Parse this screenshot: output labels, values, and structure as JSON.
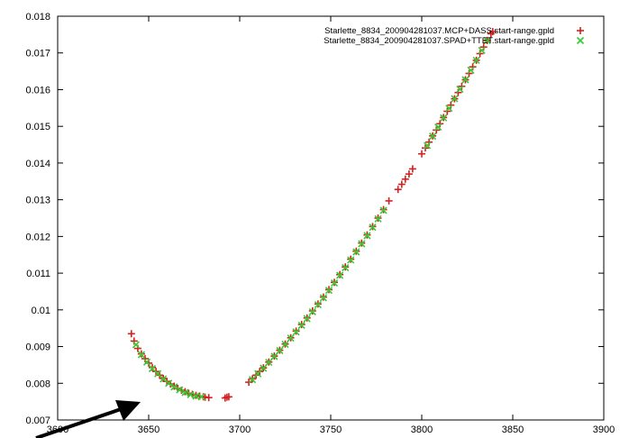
{
  "chart_data": {
    "type": "scatter",
    "title": "",
    "xlabel": "",
    "ylabel": "",
    "xlim": [
      3600,
      3900
    ],
    "ylim": [
      0.007,
      0.018
    ],
    "x_ticks": [
      3600,
      3650,
      3700,
      3750,
      3800,
      3850,
      3900
    ],
    "x_tick_labels": [
      "3600",
      "3650",
      "3700",
      "3750",
      "3800",
      "3850",
      "3900"
    ],
    "y_ticks": [
      0.007,
      0.008,
      0.009,
      0.01,
      0.011,
      0.012,
      0.013,
      0.014,
      0.015,
      0.016,
      0.017,
      0.018
    ],
    "y_tick_labels": [
      "0.007",
      "0.008",
      "0.009",
      "0.01",
      "0.011",
      "0.012",
      "0.013",
      "0.014",
      "0.015",
      "0.016",
      "0.017",
      "0.018"
    ],
    "grid": false,
    "legend_position": "top-right",
    "series": [
      {
        "name": "Starlette_8834_200904281037.MCP+DASS.start-range.gpld",
        "marker": "plus",
        "color": "#d62020",
        "points": [
          [
            3640.5,
            0.00935
          ],
          [
            3642,
            0.00915
          ],
          [
            3644,
            0.00895
          ],
          [
            3646,
            0.0088
          ],
          [
            3648,
            0.00867
          ],
          [
            3650,
            0.00855
          ],
          [
            3652,
            0.00843
          ],
          [
            3654,
            0.00832
          ],
          [
            3656,
            0.00822
          ],
          [
            3658,
            0.00813
          ],
          [
            3660,
            0.00805
          ],
          [
            3662,
            0.00798
          ],
          [
            3664,
            0.00792
          ],
          [
            3666,
            0.00786
          ],
          [
            3668,
            0.00781
          ],
          [
            3670,
            0.00777
          ],
          [
            3672,
            0.00773
          ],
          [
            3674,
            0.0077
          ],
          [
            3676,
            0.00767
          ],
          [
            3678,
            0.00765
          ],
          [
            3680,
            0.00763
          ],
          [
            3681,
            0.00762
          ],
          [
            3683,
            0.00761
          ],
          [
            3692,
            0.0076
          ],
          [
            3693,
            0.00762
          ],
          [
            3694,
            0.00763
          ],
          [
            3705,
            0.00803
          ],
          [
            3707,
            0.00812
          ],
          [
            3709,
            0.00822
          ],
          [
            3711,
            0.00832
          ],
          [
            3713,
            0.00842
          ],
          [
            3716,
            0.00858
          ],
          [
            3719,
            0.00874
          ],
          [
            3722,
            0.0089
          ],
          [
            3725,
            0.00907
          ],
          [
            3728,
            0.00924
          ],
          [
            3731,
            0.00942
          ],
          [
            3734,
            0.0096
          ],
          [
            3737,
            0.00978
          ],
          [
            3740,
            0.00997
          ],
          [
            3743,
            0.01016
          ],
          [
            3746,
            0.01035
          ],
          [
            3749,
            0.01055
          ],
          [
            3752,
            0.01075
          ],
          [
            3755,
            0.01096
          ],
          [
            3758,
            0.01117
          ],
          [
            3761,
            0.01138
          ],
          [
            3764,
            0.0116
          ],
          [
            3767,
            0.01182
          ],
          [
            3770,
            0.01204
          ],
          [
            3773,
            0.01227
          ],
          [
            3776,
            0.0125
          ],
          [
            3779,
            0.01273
          ],
          [
            3782,
            0.01297
          ],
          [
            3787,
            0.01328
          ],
          [
            3789,
            0.01342
          ],
          [
            3791,
            0.01356
          ],
          [
            3793,
            0.0137
          ],
          [
            3795,
            0.01384
          ],
          [
            3800,
            0.01425
          ],
          [
            3802,
            0.01441
          ],
          [
            3804,
            0.01457
          ],
          [
            3806,
            0.01474
          ],
          [
            3808,
            0.0149
          ],
          [
            3810,
            0.01507
          ],
          [
            3812,
            0.01524
          ],
          [
            3814,
            0.01541
          ],
          [
            3816,
            0.01558
          ],
          [
            3818,
            0.01575
          ],
          [
            3820,
            0.01592
          ],
          [
            3822,
            0.01609
          ],
          [
            3824,
            0.01627
          ],
          [
            3826,
            0.01644
          ],
          [
            3828,
            0.01662
          ],
          [
            3830,
            0.0168
          ],
          [
            3832,
            0.01698
          ],
          [
            3834,
            0.01716
          ],
          [
            3836,
            0.01734
          ],
          [
            3838,
            0.01752
          ],
          [
            3839,
            0.01758
          ]
        ]
      },
      {
        "name": "Starlette_8834_200904281037.SPAD+TTET.start-range.gpld",
        "marker": "cross",
        "color": "#33cc33",
        "points": [
          [
            3643,
            0.00905
          ],
          [
            3646,
            0.00878
          ],
          [
            3649,
            0.00858
          ],
          [
            3652,
            0.0084
          ],
          [
            3655,
            0.00826
          ],
          [
            3658,
            0.00812
          ],
          [
            3661,
            0.008
          ],
          [
            3664,
            0.0079
          ],
          [
            3667,
            0.00782
          ],
          [
            3670,
            0.00775
          ],
          [
            3673,
            0.00769
          ],
          [
            3676,
            0.00765
          ],
          [
            3679,
            0.00763
          ],
          [
            3707,
            0.0081
          ],
          [
            3710,
            0.00826
          ],
          [
            3713,
            0.00841
          ],
          [
            3716,
            0.00857
          ],
          [
            3719,
            0.00873
          ],
          [
            3722,
            0.00889
          ],
          [
            3725,
            0.00906
          ],
          [
            3728,
            0.00923
          ],
          [
            3731,
            0.0094
          ],
          [
            3734,
            0.00958
          ],
          [
            3737,
            0.00976
          ],
          [
            3740,
            0.00995
          ],
          [
            3743,
            0.01014
          ],
          [
            3746,
            0.01033
          ],
          [
            3749,
            0.01053
          ],
          [
            3752,
            0.01073
          ],
          [
            3755,
            0.01094
          ],
          [
            3758,
            0.01115
          ],
          [
            3761,
            0.01136
          ],
          [
            3764,
            0.01158
          ],
          [
            3767,
            0.0118
          ],
          [
            3770,
            0.01202
          ],
          [
            3773,
            0.01225
          ],
          [
            3776,
            0.01248
          ],
          [
            3779,
            0.01271
          ],
          [
            3803,
            0.01448
          ],
          [
            3806,
            0.01473
          ],
          [
            3809,
            0.01498
          ],
          [
            3812,
            0.01523
          ],
          [
            3815,
            0.01549
          ],
          [
            3818,
            0.01575
          ],
          [
            3821,
            0.01601
          ],
          [
            3824,
            0.01627
          ],
          [
            3827,
            0.01653
          ],
          [
            3830,
            0.0168
          ],
          [
            3833,
            0.01707
          ],
          [
            3836,
            0.01734
          ]
        ]
      }
    ]
  }
}
